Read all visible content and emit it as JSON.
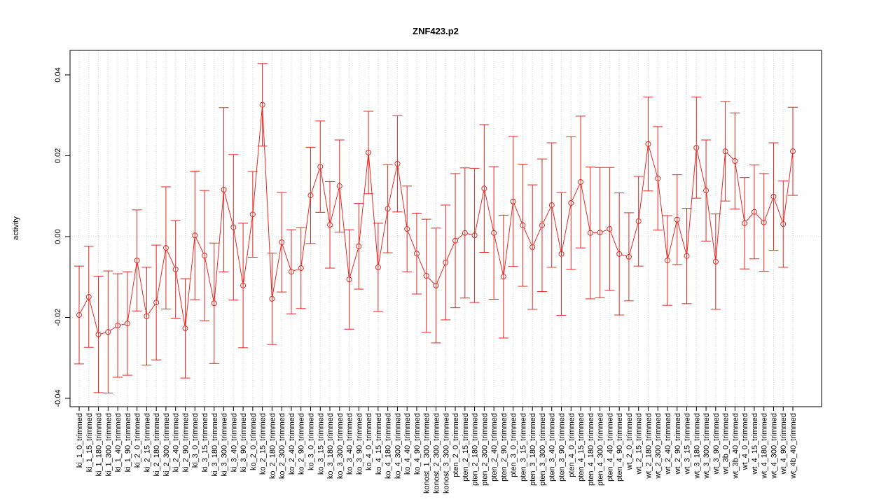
{
  "chart_data": {
    "type": "errorbar_line",
    "title": "ZNF423.p2",
    "y_label": "activity",
    "categories": [
      "ki_1_0_trimmed",
      "ki_1_15_trimmed",
      "ki_1_180_trimmed",
      "ki_1_300_trimmed",
      "ki_1_40_trimmed",
      "ki_1_90_trimmed",
      "ki_2_0_trimmed",
      "ki_2_15_trimmed",
      "ki_2_180_trimmed",
      "ki_2_300_trimmed",
      "ki_2_40_trimmed",
      "ki_2_90_trimmed",
      "ki_3_0_trimmed",
      "ki_3_15_trimmed",
      "ki_3_180_trimmed",
      "ki_3_300_trimmed",
      "ki_3_40_trimmed",
      "ki_3_90_trimmed",
      "ko_2_0_trimmed",
      "ko_2_15_trimmed",
      "ko_2_180_trimmed",
      "ko_2_300_trimmed",
      "ko_2_40_trimmed",
      "ko_2_90_trimmed",
      "ko_3_0_trimmed",
      "ko_3_15_trimmed",
      "ko_3_180_trimmed",
      "ko_3_300_trimmed",
      "ko_3_40_trimmed",
      "ko_3_90_trimmed",
      "ko_4_0_trimmed",
      "ko_4_15_trimmed",
      "ko_4_180_trimmed",
      "ko_4_300_trimmed",
      "ko_4_40_trimmed",
      "ko_4_90_trimmed",
      "konost_1_300_trimmed",
      "konost_2_300_trimmed",
      "konost_3_300_trimmed",
      "pten_2_0_trimmed",
      "pten_2_15_trimmed",
      "pten_2_180_trimmed",
      "pten_2_300_trimmed",
      "pten_2_40_trimmed",
      "pten_2_90_trimmed",
      "pten_3_0_trimmed",
      "pten_3_15_trimmed",
      "pten_3_180_trimmed",
      "pten_3_300_trimmed",
      "pten_3_40_trimmed",
      "pten_3_90_trimmed",
      "pten_4_0_trimmed",
      "pten_4_15_trimmed",
      "pten_4_180_trimmed",
      "pten_4_300_trimmed",
      "pten_4_40_trimmed",
      "pten_4_90_trimmed",
      "wt_2_0_trimmed",
      "wt_2_15_trimmed",
      "wt_2_180_trimmed",
      "wt_2_300_trimmed",
      "wt_2_40_trimmed",
      "wt_2_90_trimmed",
      "wt_3_15_trimmed",
      "wt_3_180_trimmed",
      "wt_3_300_trimmed",
      "wt_3_90_trimmed",
      "wt_3b_0_trimmed",
      "wt_3b_40_trimmed",
      "wt_4_0_trimmed",
      "wt_4_15_trimmed",
      "wt_4_180_trimmed",
      "wt_4_300_trimmed",
      "wt_4_90_trimmed",
      "wt_4b_40_trimmed"
    ],
    "series": [
      {
        "color": "#e8261f",
        "values": [
          -0.0194,
          -0.0149,
          -0.0242,
          -0.0236,
          -0.022,
          -0.0215,
          -0.0059,
          -0.0197,
          -0.0163,
          -0.0028,
          -0.0081,
          -0.0227,
          0.0003,
          -0.0047,
          -0.0165,
          0.0116,
          0.0023,
          -0.0121,
          0.0055,
          0.0326,
          -0.0154,
          -0.0014,
          -0.0087,
          -0.0078,
          0.0102,
          0.0173,
          0.0029,
          0.0125,
          -0.0106,
          -0.0024,
          0.0208,
          -0.0076,
          0.0069,
          0.018,
          0.0019,
          -0.0042,
          -0.0097,
          -0.0121,
          -0.0064,
          -0.001,
          0.0009,
          0.0003,
          0.0119,
          0.0009,
          -0.0099,
          0.0087,
          0.0028,
          -0.0026,
          0.0028,
          0.0078,
          -0.0043,
          0.0083,
          0.0135,
          0.0009,
          0.001,
          0.0019,
          -0.0043,
          -0.005,
          0.0038,
          0.0229,
          0.0144,
          -0.0059,
          0.0042,
          -0.0048,
          0.022,
          0.0114,
          -0.0062,
          0.0211,
          0.0187,
          0.0033,
          0.0061,
          0.0035,
          0.0099,
          0.0031,
          0.0211
        ],
        "errors": [
          0.0121,
          0.0125,
          0.0144,
          0.0151,
          0.0128,
          0.0128,
          0.0125,
          0.0121,
          0.0142,
          0.0151,
          0.0121,
          0.0123,
          0.0159,
          0.0161,
          0.0149,
          0.0203,
          0.018,
          0.0154,
          0.0106,
          0.0102,
          0.0113,
          0.0123,
          0.0104,
          0.01,
          0.0119,
          0.0113,
          0.0107,
          0.0114,
          0.0123,
          0.0106,
          0.0102,
          0.0109,
          0.0109,
          0.0119,
          0.0106,
          0.01,
          0.014,
          0.0142,
          0.0142,
          0.0166,
          0.0161,
          0.0166,
          0.0158,
          0.0164,
          0.0152,
          0.0161,
          0.0151,
          0.0154,
          0.0164,
          0.0154,
          0.0152,
          0.0164,
          0.0163,
          0.0163,
          0.0161,
          0.0152,
          0.0151,
          0.0109,
          0.0111,
          0.0116,
          0.0128,
          0.0111,
          0.0111,
          0.0118,
          0.0125,
          0.0125,
          0.0118,
          0.0123,
          0.0119,
          0.0113,
          0.0116,
          0.0121,
          0.0133,
          0.0107,
          0.0109
        ]
      }
    ],
    "ylim": [
      -0.04208,
      0.04606
    ],
    "yticks": [
      -0.04,
      -0.02,
      {
        "value": 0,
        "label": "0.00"
      },
      0.02,
      0.04
    ],
    "grid": true,
    "hline": 0
  }
}
